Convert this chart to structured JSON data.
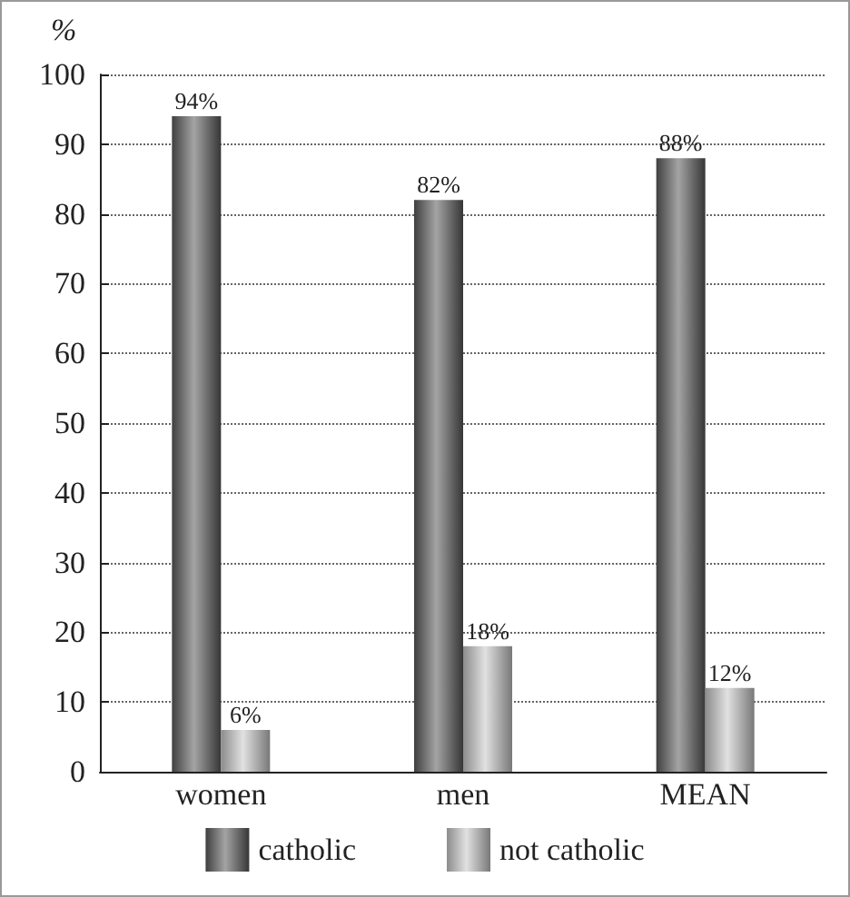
{
  "chart_data": {
    "type": "bar",
    "ylabel": "%",
    "categories": [
      "women",
      "men",
      "MEAN"
    ],
    "series": [
      {
        "name": "catholic",
        "color": "#5a5a5a",
        "values": [
          94,
          82,
          88
        ],
        "value_labels": [
          "94%",
          "82%",
          "88%"
        ]
      },
      {
        "name": "not catholic",
        "color": "#c8c8c8",
        "values": [
          6,
          18,
          12
        ],
        "value_labels": [
          "6%",
          "18%",
          "12%"
        ]
      }
    ],
    "ylim": [
      0,
      100
    ],
    "yticks": [
      0,
      10,
      20,
      30,
      40,
      50,
      60,
      70,
      80,
      90,
      100
    ],
    "grid": "y",
    "legend": "bottom"
  }
}
